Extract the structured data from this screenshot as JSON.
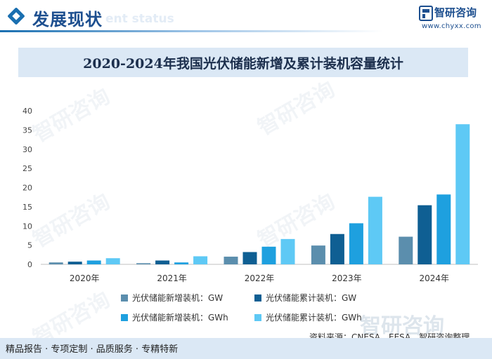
{
  "header": {
    "section_title": "发展现状",
    "section_subtitle": "ent status",
    "logo_name": "智研咨询",
    "logo_url": "www.chyxx.com"
  },
  "watermark": "智研咨询",
  "chart_data": {
    "type": "bar",
    "title": "2020-2024年我国光伏储能新增及累计装机容量统计",
    "categories": [
      "2020年",
      "2021年",
      "2022年",
      "2023年",
      "2024年"
    ],
    "series": [
      {
        "name": "光伏储能新增装机：GW",
        "color": "#5b8ead",
        "values": [
          0.5,
          0.3,
          2.0,
          4.9,
          7.2
        ]
      },
      {
        "name": "光伏储能累计装机：GW",
        "color": "#0f5f93",
        "values": [
          0.7,
          1.0,
          3.2,
          7.9,
          15.4
        ]
      },
      {
        "name": "光伏储能新增装机：GWh",
        "color": "#1ea0df",
        "values": [
          1.0,
          0.5,
          4.6,
          10.7,
          18.2
        ]
      },
      {
        "name": "光伏储能累计装机：GWh",
        "color": "#5ec9f5",
        "values": [
          1.6,
          2.1,
          6.6,
          17.6,
          36.5
        ]
      }
    ],
    "ylim": [
      0,
      40
    ],
    "yticks": [
      "0",
      "5",
      "10",
      "15",
      "20",
      "25",
      "30",
      "35",
      "40"
    ],
    "xlabel": "",
    "ylabel": "",
    "grid": false,
    "legend_position": "bottom"
  },
  "source": "资料来源：CNESA、EESA、智研咨询整理",
  "footer": {
    "text": "精品报告 · 专项定制 · 品质服务 · 专精特新",
    "watermark": "智研咨询"
  }
}
